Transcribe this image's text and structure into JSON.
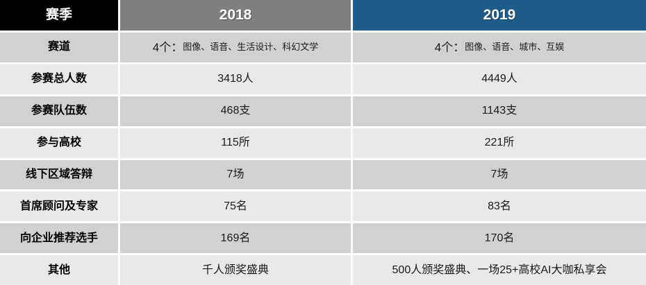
{
  "colors": {
    "season_header_bg": "#000000",
    "header_2018_bg": "#7F7F7F",
    "header_2019_bg": "#1F5C8A",
    "row_band_dark": "#D1D1D1",
    "row_band_light": "#E9E9E9",
    "divider": "#FFFFFF",
    "header_text": "#FFFFFF",
    "body_text": "#1A1A1A"
  },
  "table": {
    "header": {
      "season": "赛季",
      "year_2018": "2018",
      "year_2019": "2019"
    },
    "rows": [
      {
        "label": "赛道",
        "y2018_prefix": "4个：",
        "y2018_list": "图像、语音、生活设计、科幻文学",
        "y2019_prefix": "4个：",
        "y2019_list": "图像、语音、城市、互娱"
      },
      {
        "label": "参赛总人数",
        "y2018": "3418人",
        "y2019": "4449人"
      },
      {
        "label": "参赛队伍数",
        "y2018": "468支",
        "y2019": "1143支"
      },
      {
        "label": "参与高校",
        "y2018": "115所",
        "y2019": "221所"
      },
      {
        "label": "线下区域答辩",
        "y2018": "7场",
        "y2019": "7场"
      },
      {
        "label": "首席顾问及专家",
        "y2018": "75名",
        "y2019": "83名"
      },
      {
        "label": "向企业推荐选手",
        "y2018": "169名",
        "y2019": "170名"
      },
      {
        "label": "其他",
        "y2018": "千人颁奖盛典",
        "y2019": "500人颁奖盛典、一场25+高校AI大咖私享会"
      }
    ]
  },
  "chart_data": {
    "type": "table",
    "columns": [
      "赛季",
      "2018",
      "2019"
    ],
    "rows": [
      [
        "赛道",
        "4个：图像、语音、生活设计、科幻文学",
        "4个：图像、语音、城市、互娱"
      ],
      [
        "参赛总人数",
        "3418人",
        "4449人"
      ],
      [
        "参赛队伍数",
        "468支",
        "1143支"
      ],
      [
        "参与高校",
        "115所",
        "221所"
      ],
      [
        "线下区域答辩",
        "7场",
        "7场"
      ],
      [
        "首席顾问及专家",
        "75名",
        "83名"
      ],
      [
        "向企业推荐选手",
        "169名",
        "170名"
      ],
      [
        "其他",
        "千人颁奖盛典",
        "500人颁奖盛典、一场25+高校AI大咖私享会"
      ]
    ],
    "layout_hints": {
      "header_row_colors": [
        "#000000",
        "#7F7F7F",
        "#1F5C8A"
      ],
      "banding": "alternating #D1D1D1 / #E9E9E9",
      "grid": "white 3px dividers",
      "alignment": "center"
    }
  }
}
